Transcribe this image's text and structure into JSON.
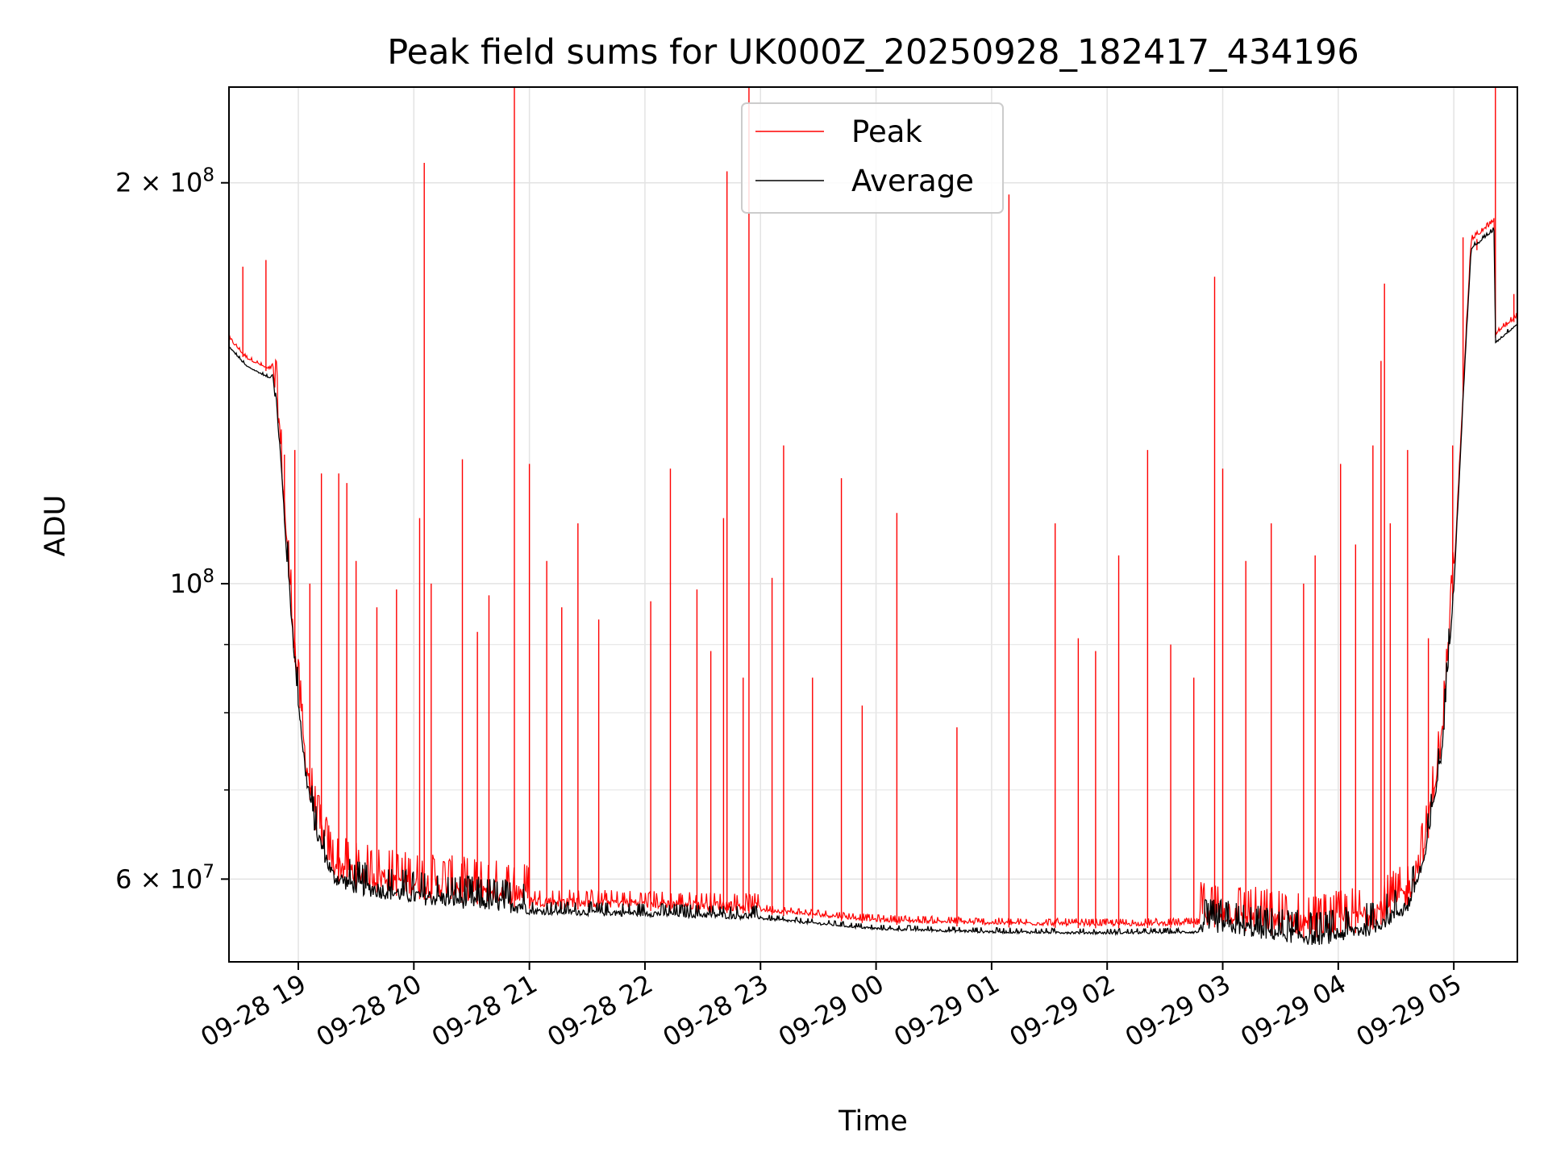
{
  "chart_data": {
    "type": "line",
    "title": "Peak field sums for UK000Z_20250928_182417_434196",
    "xlabel": "Time",
    "ylabel": "ADU",
    "yscale": "log",
    "ylim": [
      52000000,
      236000000
    ],
    "xlim_hours": [
      18.4,
      29.55
    ],
    "x_tick_labels": [
      "09-28 19",
      "09-28 20",
      "09-28 21",
      "09-28 22",
      "09-28 23",
      "09-29 00",
      "09-29 01",
      "09-29 02",
      "09-29 03",
      "09-29 04",
      "09-29 05"
    ],
    "x_tick_hours": [
      19,
      20,
      21,
      22,
      23,
      24,
      25,
      26,
      27,
      28,
      29
    ],
    "y_major_ticks": [
      {
        "value": 60000000,
        "base": "6 × 10",
        "exp": "7"
      },
      {
        "value": 100000000,
        "base": "10",
        "exp": "8"
      },
      {
        "value": 200000000,
        "base": "2 × 10",
        "exp": "8"
      }
    ],
    "y_minor_ticks": [
      70000000,
      80000000,
      90000000
    ],
    "grid": true,
    "legend_position": "top-center",
    "series": [
      {
        "name": "Peak",
        "color": "#ff0000"
      },
      {
        "name": "Average",
        "color": "#000000"
      }
    ],
    "baseline": {
      "x_hours": [
        18.4,
        18.55,
        18.75,
        18.78,
        18.83,
        18.9,
        18.98,
        19.06,
        19.15,
        19.3,
        19.5,
        20.0,
        21.0,
        22.0,
        23.0,
        23.5,
        24.0,
        25.0,
        26.0,
        27.0,
        27.4,
        27.8,
        28.0,
        28.3,
        28.6,
        28.75,
        28.9,
        29.0,
        29.1,
        29.15,
        29.35,
        29.36,
        29.55
      ],
      "values": [
        152000000,
        147000000,
        144000000,
        145000000,
        130000000,
        105000000,
        85000000,
        72000000,
        65000000,
        60000000,
        59000000,
        58000000,
        57000000,
        56800000,
        56500000,
        56000000,
        55500000,
        55200000,
        55100000,
        55200000,
        54500000,
        54000000,
        54300000,
        55000000,
        57000000,
        62000000,
        75000000,
        100000000,
        150000000,
        180000000,
        186000000,
        153000000,
        158000000
      ]
    },
    "peak_spikes": [
      {
        "x": 18.52,
        "y": 173000000
      },
      {
        "x": 18.72,
        "y": 175000000
      },
      {
        "x": 18.88,
        "y": 125000000
      },
      {
        "x": 18.97,
        "y": 126000000
      },
      {
        "x": 19.1,
        "y": 100000000
      },
      {
        "x": 19.2,
        "y": 121000000
      },
      {
        "x": 19.35,
        "y": 121000000
      },
      {
        "x": 19.42,
        "y": 119000000
      },
      {
        "x": 19.5,
        "y": 104000000
      },
      {
        "x": 19.68,
        "y": 96000000
      },
      {
        "x": 19.85,
        "y": 99000000
      },
      {
        "x": 20.05,
        "y": 112000000
      },
      {
        "x": 20.09,
        "y": 207000000
      },
      {
        "x": 20.15,
        "y": 100000000
      },
      {
        "x": 20.42,
        "y": 124000000
      },
      {
        "x": 20.55,
        "y": 92000000
      },
      {
        "x": 20.65,
        "y": 98000000
      },
      {
        "x": 20.87,
        "y": 236000000
      },
      {
        "x": 21.0,
        "y": 123000000
      },
      {
        "x": 21.15,
        "y": 104000000
      },
      {
        "x": 21.28,
        "y": 96000000
      },
      {
        "x": 21.42,
        "y": 111000000
      },
      {
        "x": 21.6,
        "y": 94000000
      },
      {
        "x": 22.05,
        "y": 97000000
      },
      {
        "x": 22.22,
        "y": 122000000
      },
      {
        "x": 22.45,
        "y": 99000000
      },
      {
        "x": 22.57,
        "y": 89000000
      },
      {
        "x": 22.68,
        "y": 112000000
      },
      {
        "x": 22.71,
        "y": 204000000
      },
      {
        "x": 22.85,
        "y": 85000000
      },
      {
        "x": 22.9,
        "y": 236000000
      },
      {
        "x": 23.1,
        "y": 101000000
      },
      {
        "x": 23.2,
        "y": 127000000
      },
      {
        "x": 23.45,
        "y": 85000000
      },
      {
        "x": 23.7,
        "y": 120000000
      },
      {
        "x": 23.88,
        "y": 81000000
      },
      {
        "x": 24.18,
        "y": 113000000
      },
      {
        "x": 24.7,
        "y": 78000000
      },
      {
        "x": 25.15,
        "y": 196000000
      },
      {
        "x": 25.55,
        "y": 111000000
      },
      {
        "x": 25.75,
        "y": 91000000
      },
      {
        "x": 25.9,
        "y": 89000000
      },
      {
        "x": 26.1,
        "y": 105000000
      },
      {
        "x": 26.35,
        "y": 126000000
      },
      {
        "x": 26.55,
        "y": 90000000
      },
      {
        "x": 26.75,
        "y": 85000000
      },
      {
        "x": 26.93,
        "y": 170000000
      },
      {
        "x": 27.0,
        "y": 122000000
      },
      {
        "x": 27.2,
        "y": 104000000
      },
      {
        "x": 27.42,
        "y": 111000000
      },
      {
        "x": 27.7,
        "y": 100000000
      },
      {
        "x": 27.8,
        "y": 105000000
      },
      {
        "x": 28.02,
        "y": 123000000
      },
      {
        "x": 28.15,
        "y": 107000000
      },
      {
        "x": 28.3,
        "y": 127000000
      },
      {
        "x": 28.37,
        "y": 147000000
      },
      {
        "x": 28.4,
        "y": 168000000
      },
      {
        "x": 28.45,
        "y": 111000000
      },
      {
        "x": 28.6,
        "y": 126000000
      },
      {
        "x": 28.78,
        "y": 91000000
      },
      {
        "x": 28.99,
        "y": 127000000
      },
      {
        "x": 29.08,
        "y": 182000000
      },
      {
        "x": 29.2,
        "y": 178000000
      },
      {
        "x": 29.36,
        "y": 236000000
      },
      {
        "x": 29.52,
        "y": 165000000
      }
    ]
  }
}
